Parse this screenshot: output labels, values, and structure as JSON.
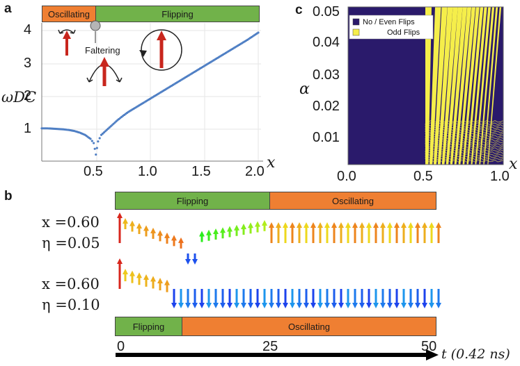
{
  "panels": {
    "a": "a",
    "b": "b",
    "c": "c"
  },
  "panel_a": {
    "phase_labels": {
      "oscillating": "Oscillating",
      "flipping": "Flipping"
    },
    "faltering_label": "Faltering",
    "ylabel": "ωDC",
    "xlabel": "x",
    "yticks": [
      "1",
      "2",
      "3",
      "4"
    ],
    "xticks": [
      "0.5",
      "1.0",
      "1.5",
      "2.0"
    ]
  },
  "panel_b": {
    "top_bands": {
      "left": "Flipping",
      "right": "Oscillating"
    },
    "bottom_bands": {
      "left": "Flipping",
      "right": "Oscillating"
    },
    "row1": {
      "x_label": "x =0.60",
      "eta_label": "η =0.05"
    },
    "row2": {
      "x_label": "x =0.60",
      "eta_label": "η =0.10"
    },
    "time_ticks": [
      "0",
      "25",
      "50"
    ],
    "time_axis_label": "t (0.42 ns)"
  },
  "panel_c": {
    "ylabel": "α",
    "xlabel": "x",
    "yticks": [
      "0.01",
      "0.02",
      "0.03",
      "0.04",
      "0.05"
    ],
    "xticks": [
      "0.0",
      "0.5",
      "1.0"
    ],
    "legend": [
      {
        "label": "No / Even Flips",
        "color": "#2a1a6b"
      },
      {
        "label": "Odd Flips",
        "color": "#f5ee4a"
      }
    ]
  },
  "chart_data": [
    {
      "type": "scatter",
      "title": "",
      "xlabel": "x",
      "ylabel": "ωDC",
      "xlim": [
        0,
        2.0
      ],
      "ylim": [
        0,
        4.2
      ],
      "series": [
        {
          "name": "ωDC",
          "x": [
            0.0,
            0.05,
            0.1,
            0.15,
            0.2,
            0.25,
            0.3,
            0.35,
            0.4,
            0.45,
            0.48,
            0.5,
            0.52,
            0.55,
            0.6,
            0.65,
            0.7,
            0.75,
            0.8,
            0.9,
            1.0,
            1.1,
            1.2,
            1.3,
            1.4,
            1.5,
            1.6,
            1.7,
            1.8,
            1.9,
            2.0
          ],
          "y": [
            1.0,
            1.0,
            0.99,
            0.98,
            0.97,
            0.95,
            0.92,
            0.87,
            0.8,
            0.68,
            0.55,
            0.2,
            0.6,
            0.8,
            0.95,
            1.1,
            1.25,
            1.38,
            1.5,
            1.7,
            1.9,
            2.1,
            2.3,
            2.5,
            2.7,
            2.9,
            3.1,
            3.3,
            3.5,
            3.7,
            3.92
          ]
        }
      ]
    },
    {
      "type": "heatmap",
      "title": "",
      "xlabel": "x",
      "ylabel": "α",
      "xlim": [
        0.0,
        1.0
      ],
      "ylim": [
        0.0,
        0.05
      ],
      "regions": [
        {
          "x_range": [
            0.0,
            0.5
          ],
          "value": "No / Even Flips"
        },
        {
          "x_range": [
            0.5,
            1.0
          ],
          "value": "alternating Odd / Even stripes"
        }
      ]
    }
  ]
}
